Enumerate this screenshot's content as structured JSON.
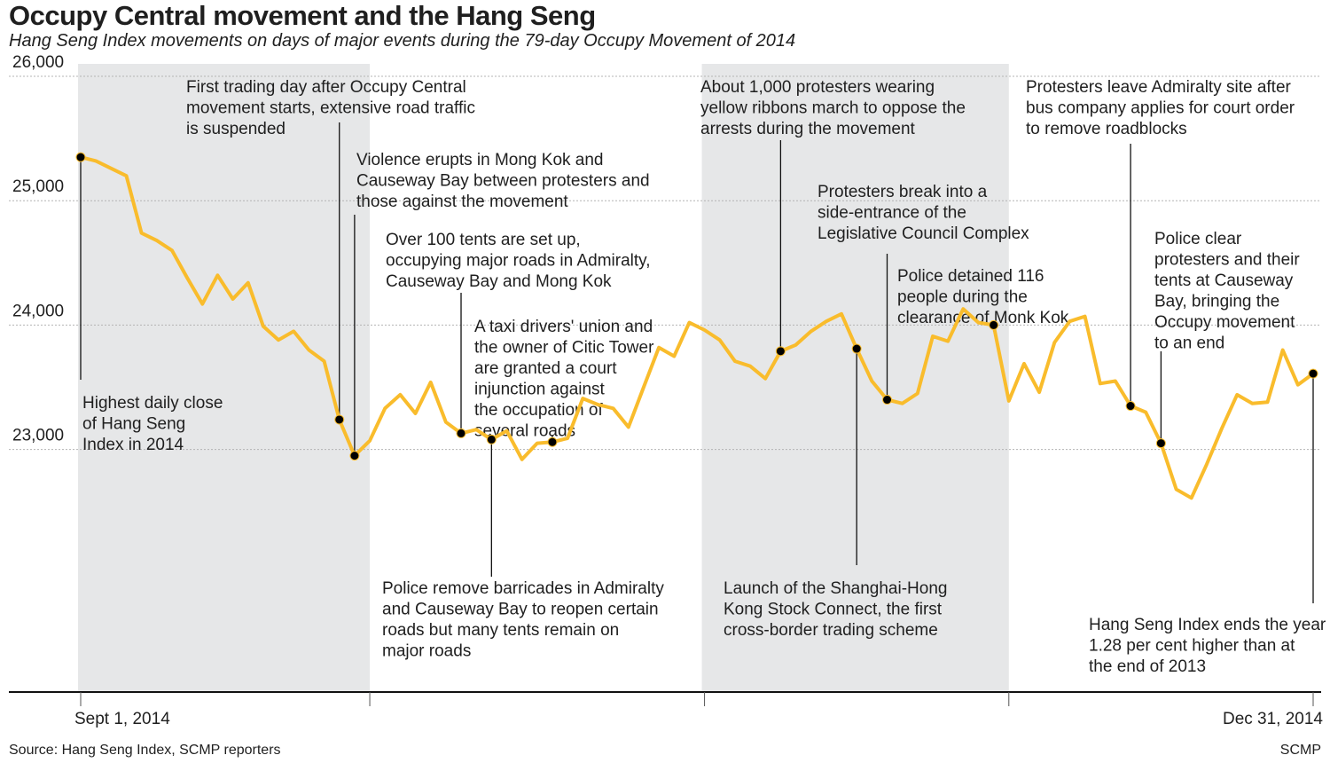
{
  "header": {
    "title": "Occupy Central movement and the Hang Seng",
    "subtitle": "Hang Seng Index movements on days of major events during the 79-day Occupy Movement of 2014"
  },
  "footer": {
    "source": "Source: Hang Seng Index, SCMP reporters",
    "credit": "SCMP"
  },
  "colors": {
    "line": "#f9bc2c",
    "shading": "#e6e7e8",
    "grid": "#b4b4b4",
    "text": "#1f1f1f"
  },
  "chart_data": {
    "type": "line",
    "title": "Occupy Central movement and the Hang Seng",
    "subtitle": "Hang Seng Index movements on days of major events during the 79-day Occupy Movement of 2014",
    "xlabel": "",
    "ylabel": "",
    "x_start_label": "Sept 1, 2014",
    "x_end_label": "Dec 31, 2014",
    "ylim": [
      21050,
      26100
    ],
    "yticks": [
      23000,
      24000,
      25000,
      26000
    ],
    "ytick_labels": [
      "23,000",
      "24,000",
      "25,000",
      "26,000"
    ],
    "grid": "dashed horizontal",
    "shaded_ranges": [
      [
        0,
        19
      ],
      [
        41,
        61
      ]
    ],
    "values": [
      25350,
      25320,
      25260,
      25200,
      24740,
      24680,
      24600,
      24380,
      24170,
      24400,
      24210,
      24340,
      23990,
      23880,
      23950,
      23800,
      23710,
      23240,
      22950,
      23070,
      23330,
      23440,
      23290,
      23540,
      23220,
      23130,
      23160,
      23080,
      23150,
      22920,
      23050,
      23060,
      23090,
      23410,
      23360,
      23330,
      23180,
      23500,
      23820,
      23750,
      24020,
      23960,
      23880,
      23710,
      23670,
      23570,
      23790,
      23840,
      23950,
      24030,
      24090,
      23810,
      23550,
      23400,
      23370,
      23450,
      23910,
      23870,
      24130,
      24020,
      24000,
      23390,
      23690,
      23460,
      23860,
      24030,
      24070,
      23530,
      23550,
      23350,
      23300,
      23050,
      22680,
      22610,
      22880,
      23170,
      23440,
      23370,
      23380,
      23800,
      23520,
      23610
    ],
    "annotations": [
      {
        "index": 0,
        "lines": [
          "Highest daily close",
          "of Hang Seng",
          "Index in 2014"
        ]
      },
      {
        "index": 17,
        "lines": [
          "First trading day after Occupy Central",
          "movement starts, extensive road traffic",
          "is suspended"
        ]
      },
      {
        "index": 18,
        "lines": [
          "Violence erupts in Mong Kok and",
          "Causeway Bay between protesters and",
          "those against the movement"
        ]
      },
      {
        "index": 25,
        "lines": [
          "Over 100 tents are set up,",
          "occupying major roads in Admiralty,",
          "Causeway Bay and Mong Kok"
        ]
      },
      {
        "index": 27,
        "lines": [
          "Police remove barricades in Admiralty",
          "and Causeway Bay to reopen certain",
          "roads but many tents  remain on",
          "major roads"
        ]
      },
      {
        "index": 31,
        "lines": [
          "A taxi drivers' union and",
          "the owner of Citic Tower",
          "are granted a court",
          "injunction against",
          "the occupation of",
          "several roads"
        ]
      },
      {
        "index": 46,
        "lines": [
          "About 1,000 protesters wearing",
          "yellow ribbons march to oppose the",
          "arrests during the movement"
        ]
      },
      {
        "index": 51,
        "lines": [
          "Launch of the Shanghai-Hong",
          "Kong Stock Connect, the first",
          "cross-border trading scheme"
        ]
      },
      {
        "index": 53,
        "lines": [
          "Protesters break into a",
          "side-entrance of the",
          "Legislative Council Complex"
        ]
      },
      {
        "index": 60,
        "lines": [
          "Police detained 116",
          "people during the",
          "clearance of Monk Kok"
        ]
      },
      {
        "index": 69,
        "lines": [
          "Protesters leave Admiralty site after",
          "bus company applies for court order",
          "to remove roadblocks"
        ]
      },
      {
        "index": 71,
        "lines": [
          "Police clear",
          "protesters and their",
          "tents at Causeway",
          "Bay, bringing the",
          "Occupy movement",
          "to an end"
        ]
      },
      {
        "index": 81,
        "lines": [
          "Hang Seng Index ends the year",
          "1.28 per cent higher than at",
          "the end of 2013"
        ]
      }
    ]
  }
}
